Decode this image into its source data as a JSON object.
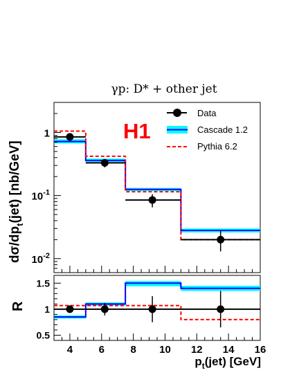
{
  "chart_data": {
    "type": "line",
    "title": "γp:  D* + other jet",
    "logo": "H1",
    "colors": {
      "data": "#000000",
      "cascade_band": "#00ffff",
      "cascade_line": "#0000ff",
      "pythia": "#ff0000",
      "logo": "#ff0000"
    },
    "legend": {
      "placement": "top-right",
      "entries": [
        {
          "label": "Data",
          "style": "marker"
        },
        {
          "label": "Cascade 1.2",
          "style": "band"
        },
        {
          "label": "Pythia 6.2",
          "style": "dashed"
        }
      ]
    },
    "x": {
      "label": "p",
      "label_sub": "t",
      "label_tail": "(jet) [GeV]",
      "lim": [
        3,
        16
      ],
      "ticks": [
        4,
        6,
        8,
        10,
        12,
        14,
        16
      ],
      "tick_labels": [
        "4",
        "6",
        "8",
        "10",
        "12",
        "14",
        "16"
      ]
    },
    "bin_edges": [
      3,
      5,
      7.5,
      11,
      16
    ],
    "top_panel": {
      "ylabel_pre": "dσ/dp",
      "ylabel_sub": "t",
      "ylabel_post": "(jet)  [nb/GeV]",
      "scale": "log",
      "ylim": [
        0.006,
        3
      ],
      "ticks": [
        {
          "value": 1,
          "base": "1",
          "exp": ""
        },
        {
          "value": 0.1,
          "base": "10",
          "exp": "-1"
        },
        {
          "value": 0.01,
          "base": "10",
          "exp": "-2"
        }
      ],
      "series": [
        {
          "name": "Data",
          "x": [
            4,
            6.2,
            9.2,
            13.5
          ],
          "y": [
            0.85,
            0.33,
            0.085,
            0.02
          ],
          "yerr_low": [
            0.1,
            0.05,
            0.02,
            0.007
          ],
          "yerr_high": [
            0.1,
            0.05,
            0.02,
            0.008
          ],
          "hist": [
            0.85,
            0.33,
            0.085,
            0.02
          ]
        },
        {
          "name": "Cascade 1.2",
          "values": [
            0.72,
            0.36,
            0.125,
            0.028
          ],
          "band_low": [
            0.67,
            0.34,
            0.118,
            0.026
          ],
          "band_high": [
            0.78,
            0.385,
            0.132,
            0.03
          ]
        },
        {
          "name": "Pythia 6.2",
          "values": [
            1.05,
            0.42,
            0.115,
            0.02
          ]
        }
      ]
    },
    "bottom_panel": {
      "ylabel": "R",
      "scale": "linear",
      "ylim": [
        0.4,
        1.65
      ],
      "ticks": [
        0.5,
        1,
        1.5
      ],
      "tick_labels": [
        "0.5",
        "1",
        "1.5"
      ],
      "series": [
        {
          "name": "Data",
          "x": [
            4,
            6.2,
            9.2,
            13.5
          ],
          "y": [
            1.0,
            1.0,
            1.0,
            1.0
          ],
          "yerr": [
            0.05,
            0.12,
            0.25,
            0.35
          ],
          "hist": [
            1.0,
            1.0,
            1.0,
            1.0
          ]
        },
        {
          "name": "Cascade 1.2",
          "values": [
            0.85,
            1.1,
            1.5,
            1.4
          ],
          "band_low": [
            0.82,
            1.07,
            1.44,
            1.35
          ],
          "band_high": [
            0.88,
            1.13,
            1.54,
            1.45
          ]
        },
        {
          "name": "Pythia 6.2",
          "values": [
            1.07,
            1.07,
            1.07,
            0.8
          ]
        }
      ]
    }
  }
}
